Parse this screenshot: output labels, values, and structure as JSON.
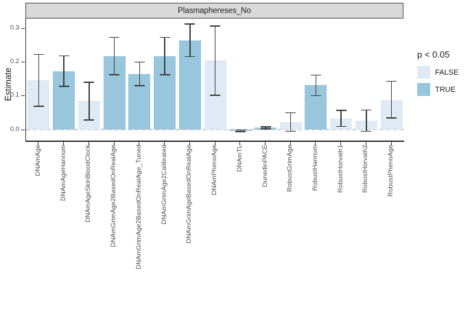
{
  "strip": {
    "title": "Plasmaphereses_No"
  },
  "axes": {
    "y_label": "Estimate",
    "y_ticks": [
      "0.0",
      "0.1",
      "0.2",
      "0.3"
    ]
  },
  "legend": {
    "title": "p < 0.05",
    "items": [
      {
        "label": "FALSE",
        "color": "#e0eaf4"
      },
      {
        "label": "TRUE",
        "color": "#98c6dc"
      }
    ]
  },
  "colors": {
    "false_fill": "#e0eaf4",
    "true_fill": "#98c6dc",
    "error_bar": "#3f3f3f",
    "zero_line": "#cccccc",
    "strip_bg": "#d9d9d9",
    "axis_text": "#4d4d4d"
  },
  "chart_data": {
    "type": "bar",
    "title": "Plasmaphereses_No",
    "xlabel": "",
    "ylabel": "Estimate",
    "ylim": [
      -0.033,
      0.328
    ],
    "y_tick_values": [
      0.0,
      0.1,
      0.2,
      0.3
    ],
    "grid": false,
    "zero_line": "dashed",
    "legend_title": "p < 0.05",
    "legend_position": "right",
    "categories": [
      "DNAmAge",
      "DNAmAgeHannum",
      "DNAmAgeSkinBloodClock",
      "DNAmGrimAge2BasedOnRealAge",
      "DNAmGrimAge2BasedOnRealAge_Tuned",
      "DNAmGrimAge2Calibrated",
      "DNAmGrimAgeBasedOnRealAge",
      "DNAmPhenoAge",
      "DNAmTL",
      "DunedinPACE",
      "RobustGrimAge",
      "RobustHannum",
      "RobustHorvath1",
      "RobustHorvath2",
      "RobustPhenoAge"
    ],
    "values": [
      0.145,
      0.172,
      0.084,
      0.217,
      0.164,
      0.217,
      0.264,
      0.204,
      -0.004,
      0.005,
      0.022,
      0.131,
      0.032,
      0.026,
      0.087
    ],
    "ci_low": [
      0.068,
      0.127,
      0.028,
      0.162,
      0.129,
      0.162,
      0.216,
      0.101,
      -0.007,
      0.002,
      -0.006,
      0.1,
      0.009,
      -0.006,
      0.034
    ],
    "ci_high": [
      0.222,
      0.218,
      0.139,
      0.272,
      0.199,
      0.272,
      0.312,
      0.306,
      -0.001,
      0.008,
      0.049,
      0.161,
      0.056,
      0.057,
      0.143
    ],
    "significant": [
      false,
      true,
      false,
      true,
      true,
      true,
      true,
      false,
      true,
      true,
      false,
      true,
      false,
      false,
      false
    ]
  }
}
